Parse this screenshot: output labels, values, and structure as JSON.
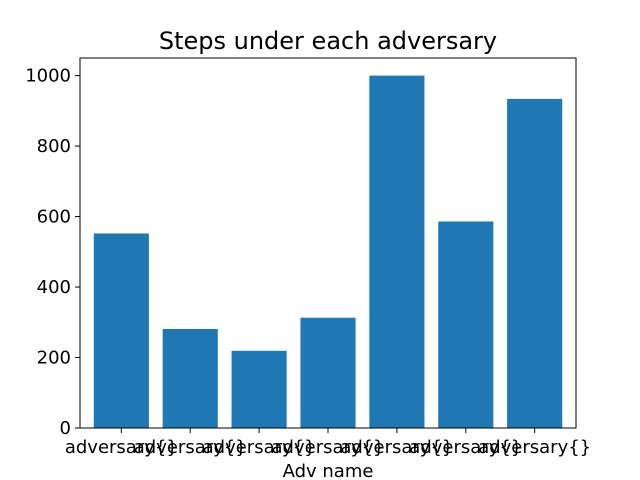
{
  "chart_data": {
    "type": "bar",
    "title": "Steps under each adversary",
    "xlabel": "Adv name",
    "ylabel": "",
    "categories": [
      "adversary{}",
      "adversary{}",
      "adversary{}",
      "adversary{}",
      "adversary{}",
      "adversary{}",
      "adversary{}"
    ],
    "values": [
      552,
      281,
      219,
      313,
      1000,
      586,
      934
    ],
    "ylim": [
      0,
      1050
    ],
    "yticks": [
      0,
      200,
      400,
      600,
      800,
      1000
    ],
    "grid": false,
    "bar_color": "#1f77b4"
  }
}
